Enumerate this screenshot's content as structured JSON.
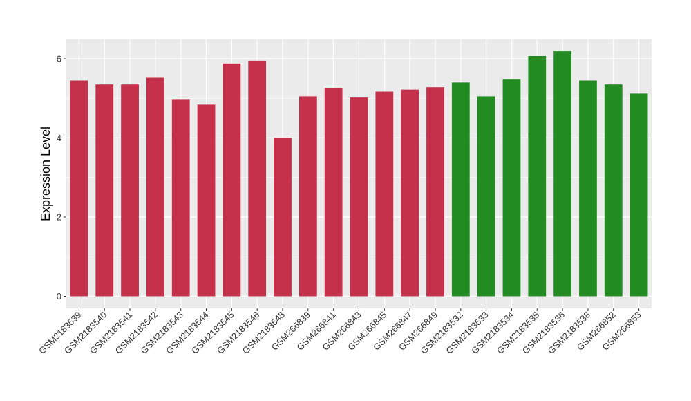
{
  "chart_data": {
    "type": "bar",
    "title": "",
    "xlabel": "",
    "ylabel": "Expression Level",
    "ylim": [
      0,
      6.5
    ],
    "yticks": [
      0,
      2,
      4,
      6
    ],
    "grid": true,
    "legend": "none",
    "categories": [
      "GSM2183539",
      "GSM2183540",
      "GSM2183541",
      "GSM2183542",
      "GSM2183543",
      "GSM2183544",
      "GSM2183545",
      "GSM2183546",
      "GSM2183548",
      "GSM266839",
      "GSM266841",
      "GSM266843",
      "GSM266845",
      "GSM266847",
      "GSM266849",
      "GSM2183532",
      "GSM2183533",
      "GSM2183534",
      "GSM2183535",
      "GSM2183536",
      "GSM2183538",
      "GSM266852",
      "GSM266853"
    ],
    "values": [
      5.45,
      5.35,
      5.35,
      5.52,
      4.98,
      4.84,
      5.88,
      5.95,
      4.0,
      5.05,
      5.26,
      5.02,
      5.17,
      5.22,
      5.28,
      5.4,
      5.05,
      5.49,
      6.07,
      6.19,
      5.45,
      5.35,
      5.12
    ],
    "bar_colors": [
      "#c5304a",
      "#c5304a",
      "#c5304a",
      "#c5304a",
      "#c5304a",
      "#c5304a",
      "#c5304a",
      "#c5304a",
      "#c5304a",
      "#c5304a",
      "#c5304a",
      "#c5304a",
      "#c5304a",
      "#c5304a",
      "#c5304a",
      "#228b22",
      "#228b22",
      "#228b22",
      "#228b22",
      "#228b22",
      "#228b22",
      "#228b22",
      "#228b22"
    ],
    "panel_background": "#ebebeb",
    "grid_color": "#ffffff"
  }
}
